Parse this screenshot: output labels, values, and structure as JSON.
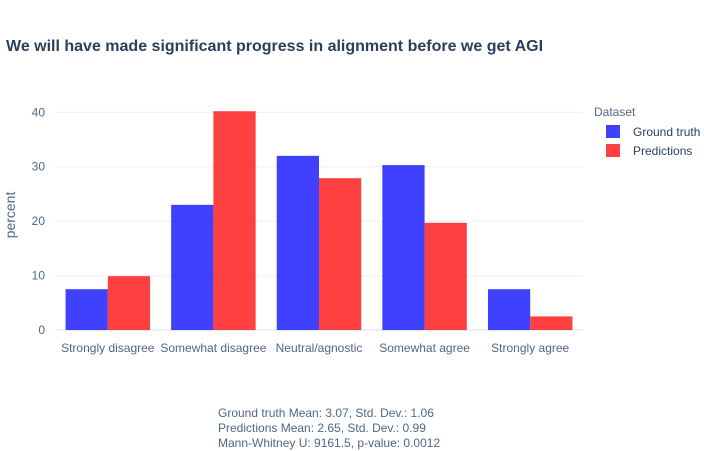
{
  "chart_data": {
    "type": "bar",
    "title": "We will have made significant progress in alignment before we get AGI",
    "xlabel": "",
    "ylabel": "percent",
    "ylim": [
      0,
      43
    ],
    "yticks": [
      0,
      10,
      20,
      30,
      40
    ],
    "categories": [
      "Strongly disagree",
      "Somewhat disagree",
      "Neutral/agnostic",
      "Somewhat agree",
      "Strongly agree"
    ],
    "legend_title": "Dataset",
    "series": [
      {
        "name": "Ground truth",
        "color": "#0000ff",
        "values": [
          7.5,
          23.0,
          32.0,
          30.3,
          7.5
        ]
      },
      {
        "name": "Predictions",
        "color": "#ff0000",
        "values": [
          9.9,
          40.2,
          27.9,
          19.7,
          2.5
        ]
      }
    ]
  },
  "stats": {
    "line1": "Ground truth Mean: 3.07, Std. Dev.: 1.06",
    "line2": "Predictions Mean: 2.65, Std. Dev.: 0.99",
    "line3": "Mann-Whitney U: 9161.5, p-value: 0.0012"
  }
}
